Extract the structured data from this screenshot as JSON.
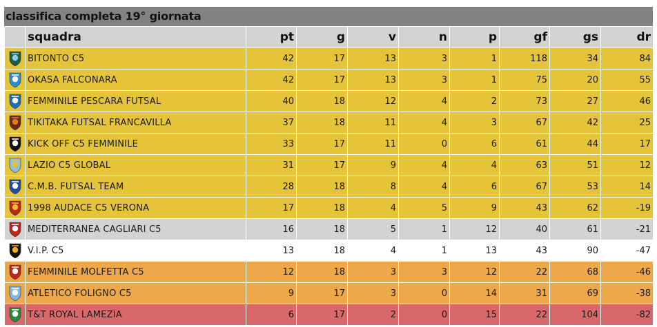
{
  "title": "classifica completa 19° giornata",
  "headers": {
    "team": "squadra",
    "pt": "pt",
    "g": "g",
    "v": "v",
    "n": "n",
    "p": "p",
    "gf": "gf",
    "gs": "gs",
    "dr": "dr"
  },
  "zone_colors": {
    "yellow": "#e6c43a",
    "grey": "#d3d3d3",
    "white": "#ffffff",
    "orange": "#eda84a",
    "red": "#d9686a"
  },
  "rows": [
    {
      "team": "BITONTO C5",
      "pt": "42",
      "g": "17",
      "v": "13",
      "n": "3",
      "p": "1",
      "gf": "118",
      "gs": "34",
      "dr": "84",
      "zone": "yellow",
      "logo": "bitonto-crest-icon",
      "logo_colors": [
        "#1d5c4a",
        "#8fd0e0"
      ]
    },
    {
      "team": "OKASA FALCONARA",
      "pt": "42",
      "g": "17",
      "v": "13",
      "n": "3",
      "p": "1",
      "gf": "75",
      "gs": "20",
      "dr": "55",
      "zone": "yellow",
      "logo": "falconara-crest-icon",
      "logo_colors": [
        "#2a8fd0",
        "#ffffff"
      ]
    },
    {
      "team": "FEMMINILE PESCARA FUTSAL",
      "pt": "40",
      "g": "18",
      "v": "12",
      "n": "4",
      "p": "2",
      "gf": "73",
      "gs": "27",
      "dr": "46",
      "zone": "yellow",
      "logo": "pescara-crest-icon",
      "logo_colors": [
        "#1f6fb5",
        "#ffffff"
      ]
    },
    {
      "team": "TIKITAKA FUTSAL FRANCAVILLA",
      "pt": "37",
      "g": "18",
      "v": "11",
      "n": "4",
      "p": "3",
      "gf": "67",
      "gs": "42",
      "dr": "25",
      "zone": "yellow",
      "logo": "tikitaka-crest-icon",
      "logo_colors": [
        "#6a2a14",
        "#e07a2a"
      ]
    },
    {
      "team": "KICK OFF C5 FEMMINILE",
      "pt": "33",
      "g": "17",
      "v": "11",
      "n": "0",
      "p": "6",
      "gf": "61",
      "gs": "44",
      "dr": "17",
      "zone": "yellow",
      "logo": "kickoff-crest-icon",
      "logo_colors": [
        "#111111",
        "#ffffff"
      ]
    },
    {
      "team": "LAZIO C5 GLOBAL",
      "pt": "31",
      "g": "17",
      "v": "9",
      "n": "4",
      "p": "4",
      "gf": "63",
      "gs": "51",
      "dr": "12",
      "zone": "yellow",
      "logo": "lazio-eagle-icon",
      "logo_colors": [
        "#8fc0e0",
        "#e6c43a"
      ]
    },
    {
      "team": "C.M.B. FUTSAL TEAM",
      "pt": "28",
      "g": "18",
      "v": "8",
      "n": "4",
      "p": "6",
      "gf": "67",
      "gs": "53",
      "dr": "14",
      "zone": "yellow",
      "logo": "cmb-crest-icon",
      "logo_colors": [
        "#1f4fa0",
        "#ffffff"
      ]
    },
    {
      "team": "1998 AUDACE C5 VERONA",
      "pt": "17",
      "g": "18",
      "v": "4",
      "n": "5",
      "p": "9",
      "gf": "43",
      "gs": "62",
      "dr": "-19",
      "zone": "yellow",
      "logo": "audace-crest-icon",
      "logo_colors": [
        "#c0241c",
        "#f0c030"
      ]
    },
    {
      "team": "MEDITERRANEA CAGLIARI C5",
      "pt": "16",
      "g": "18",
      "v": "5",
      "n": "1",
      "p": "12",
      "gf": "40",
      "gs": "61",
      "dr": "-21",
      "zone": "grey",
      "logo": "mediterranea-crest-icon",
      "logo_colors": [
        "#c0241c",
        "#ffffff"
      ]
    },
    {
      "team": "V.I.P. C5",
      "pt": "13",
      "g": "18",
      "v": "4",
      "n": "1",
      "p": "13",
      "gf": "43",
      "gs": "90",
      "dr": "-47",
      "zone": "white",
      "logo": "vip-crest-icon",
      "logo_colors": [
        "#111111",
        "#f0b020"
      ]
    },
    {
      "team": "FEMMINILE MOLFETTA C5",
      "pt": "12",
      "g": "18",
      "v": "3",
      "n": "3",
      "p": "12",
      "gf": "22",
      "gs": "68",
      "dr": "-46",
      "zone": "orange",
      "logo": "molfetta-crest-icon",
      "logo_colors": [
        "#c0241c",
        "#ffffff"
      ]
    },
    {
      "team": "ATLETICO FOLIGNO C5",
      "pt": "9",
      "g": "17",
      "v": "3",
      "n": "0",
      "p": "14",
      "gf": "31",
      "gs": "69",
      "dr": "-38",
      "zone": "orange",
      "logo": "foligno-crest-icon",
      "logo_colors": [
        "#7fb8e0",
        "#ffffff"
      ]
    },
    {
      "team": "T&T ROYAL LAMEZIA",
      "pt": "6",
      "g": "17",
      "v": "2",
      "n": "0",
      "p": "15",
      "gf": "22",
      "gs": "104",
      "dr": "-82",
      "zone": "red",
      "logo": "royal-lamezia-crest-icon",
      "logo_colors": [
        "#2a8a3a",
        "#ffffff"
      ]
    }
  ]
}
